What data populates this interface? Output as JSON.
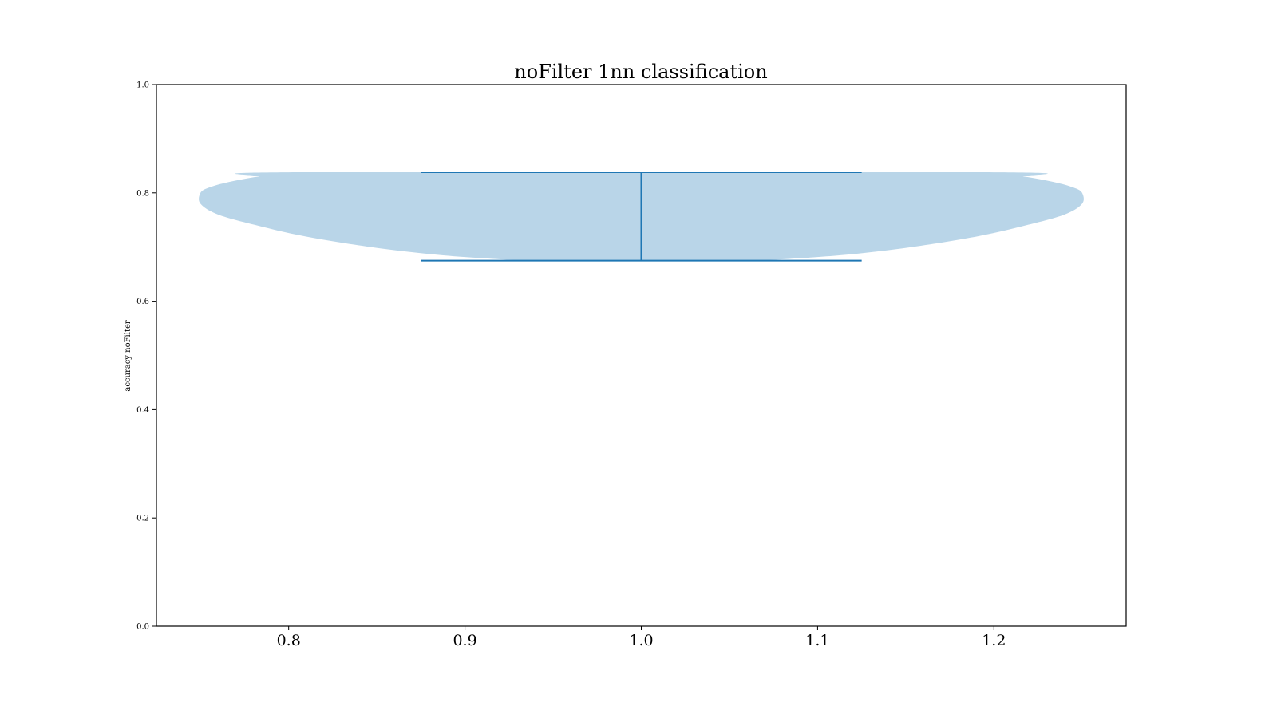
{
  "chart_data": {
    "type": "violin",
    "title": "noFilter 1nn classification",
    "xlabel": "",
    "ylabel": "accuracy noFilter",
    "xlim": [
      0.725,
      1.275
    ],
    "ylim": [
      0.0,
      1.0
    ],
    "x_ticks": [
      0.8,
      0.9,
      1.0,
      1.1,
      1.2
    ],
    "x_tick_labels": [
      "0.8",
      "0.9",
      "1.0",
      "1.1",
      "1.2"
    ],
    "y_ticks": [
      0.0,
      0.2,
      0.4,
      0.6,
      0.8,
      1.0
    ],
    "y_tick_labels": [
      "0.0",
      "0.2",
      "0.4",
      "0.6",
      "0.8",
      "1.0"
    ],
    "grid": false,
    "violins": [
      {
        "position": 1.0,
        "min": 0.675,
        "max": 0.838,
        "widths": 0.5,
        "density_profile": [
          {
            "y": 0.675,
            "half_width": 0.068
          },
          {
            "y": 0.685,
            "half_width": 0.113
          },
          {
            "y": 0.7,
            "half_width": 0.153
          },
          {
            "y": 0.72,
            "half_width": 0.191
          },
          {
            "y": 0.74,
            "half_width": 0.218
          },
          {
            "y": 0.76,
            "half_width": 0.24
          },
          {
            "y": 0.78,
            "half_width": 0.25
          },
          {
            "y": 0.8,
            "half_width": 0.25
          },
          {
            "y": 0.81,
            "half_width": 0.245
          },
          {
            "y": 0.82,
            "half_width": 0.234
          },
          {
            "y": 0.83,
            "half_width": 0.217
          },
          {
            "y": 0.838,
            "half_width": 0.195
          }
        ]
      }
    ],
    "colors": {
      "body": "#b9d5e8",
      "lines": "#1f77b4",
      "axes": "#000000"
    }
  }
}
